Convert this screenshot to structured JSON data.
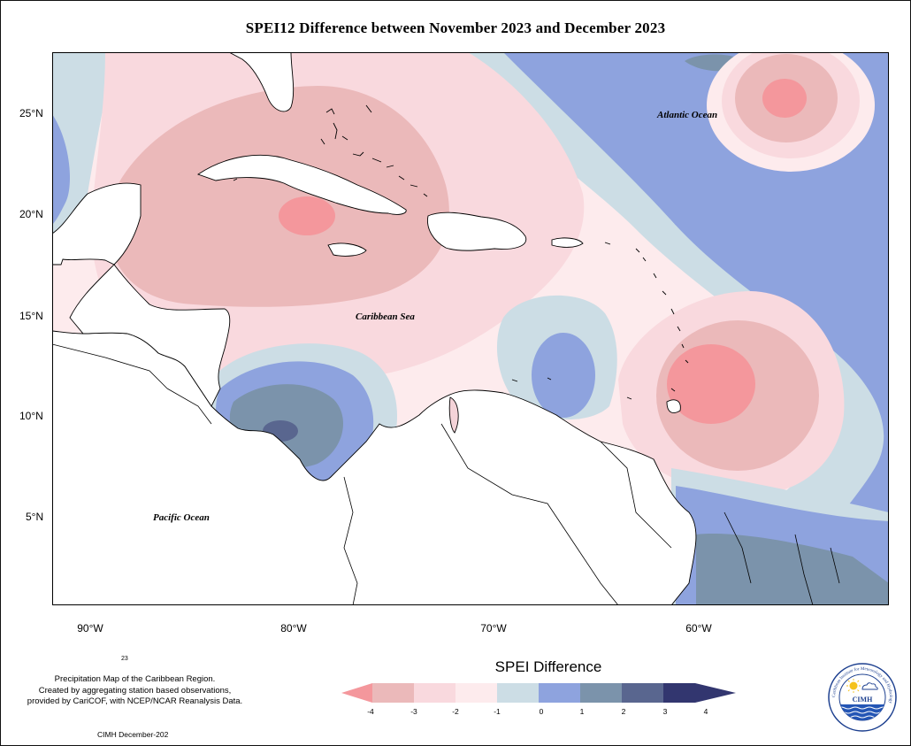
{
  "title": "SPEI12 Difference between November 2023 and December 2023",
  "map": {
    "lat_ticks": [
      "25°N",
      "20°N",
      "15°N",
      "10°N",
      "5°N"
    ],
    "lon_ticks": [
      "90°W",
      "80°W",
      "70°W",
      "60°W"
    ],
    "ocean_labels": {
      "atlantic": "Atlantic Ocean",
      "caribbean": "Caribbean Sea",
      "pacific": "Pacific Ocean"
    },
    "colors": {
      "neg4": "#f4979c",
      "neg3": "#ebb9ba",
      "neg2": "#f9d9de",
      "neg1": "#fdebed",
      "pos0": "#ccdde5",
      "pos1": "#8ea3de",
      "pos2": "#7b93ab",
      "pos3": "#59668f",
      "pos4": "#32366f"
    }
  },
  "legend": {
    "title": "SPEI Difference",
    "ticks": [
      "-4",
      "-3",
      "-2",
      "-1",
      "0",
      "1",
      "2",
      "3",
      "4"
    ]
  },
  "footnote": {
    "stub": "23",
    "lines": [
      "Precipitation Map of the Caribbean Region.",
      "Created by aggregating station based observations,",
      "provided by CariCOF, with NCEP/NCAR Reanalysis Data."
    ],
    "credit": "CIMH December-202"
  },
  "logo": {
    "text": "CIMH",
    "ring_text": "Caribbean Institute for Meteorology and Hydrology"
  }
}
